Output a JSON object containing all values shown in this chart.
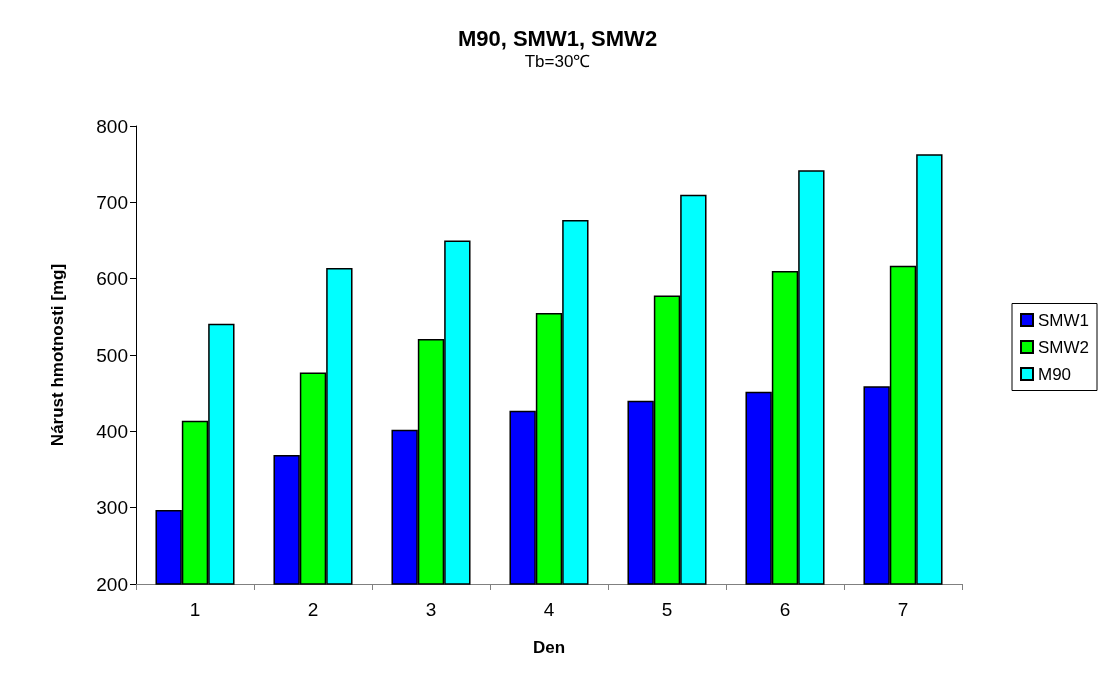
{
  "chart_data": {
    "type": "bar",
    "title": "M90, SMW1, SMW2",
    "subtitle": "Tb=30℃",
    "xlabel": "Den",
    "ylabel": "Nárust hmotnosti [mg]",
    "categories": [
      "1",
      "2",
      "3",
      "4",
      "5",
      "6",
      "7"
    ],
    "series": [
      {
        "name": "SMW1",
        "color": "#0000ff",
        "values": [
          297,
          369,
          402,
          427,
          440,
          452,
          459
        ]
      },
      {
        "name": "SMW2",
        "color": "#00ff00",
        "values": [
          414,
          477,
          521,
          555,
          578,
          610,
          617
        ]
      },
      {
        "name": "M90",
        "color": "#00ffff",
        "values": [
          541,
          614,
          650,
          677,
          710,
          742,
          763
        ]
      }
    ],
    "ylim": [
      200,
      800
    ],
    "yticks": [
      200,
      300,
      400,
      500,
      600,
      700,
      800
    ],
    "grid": false,
    "legend": "right"
  }
}
